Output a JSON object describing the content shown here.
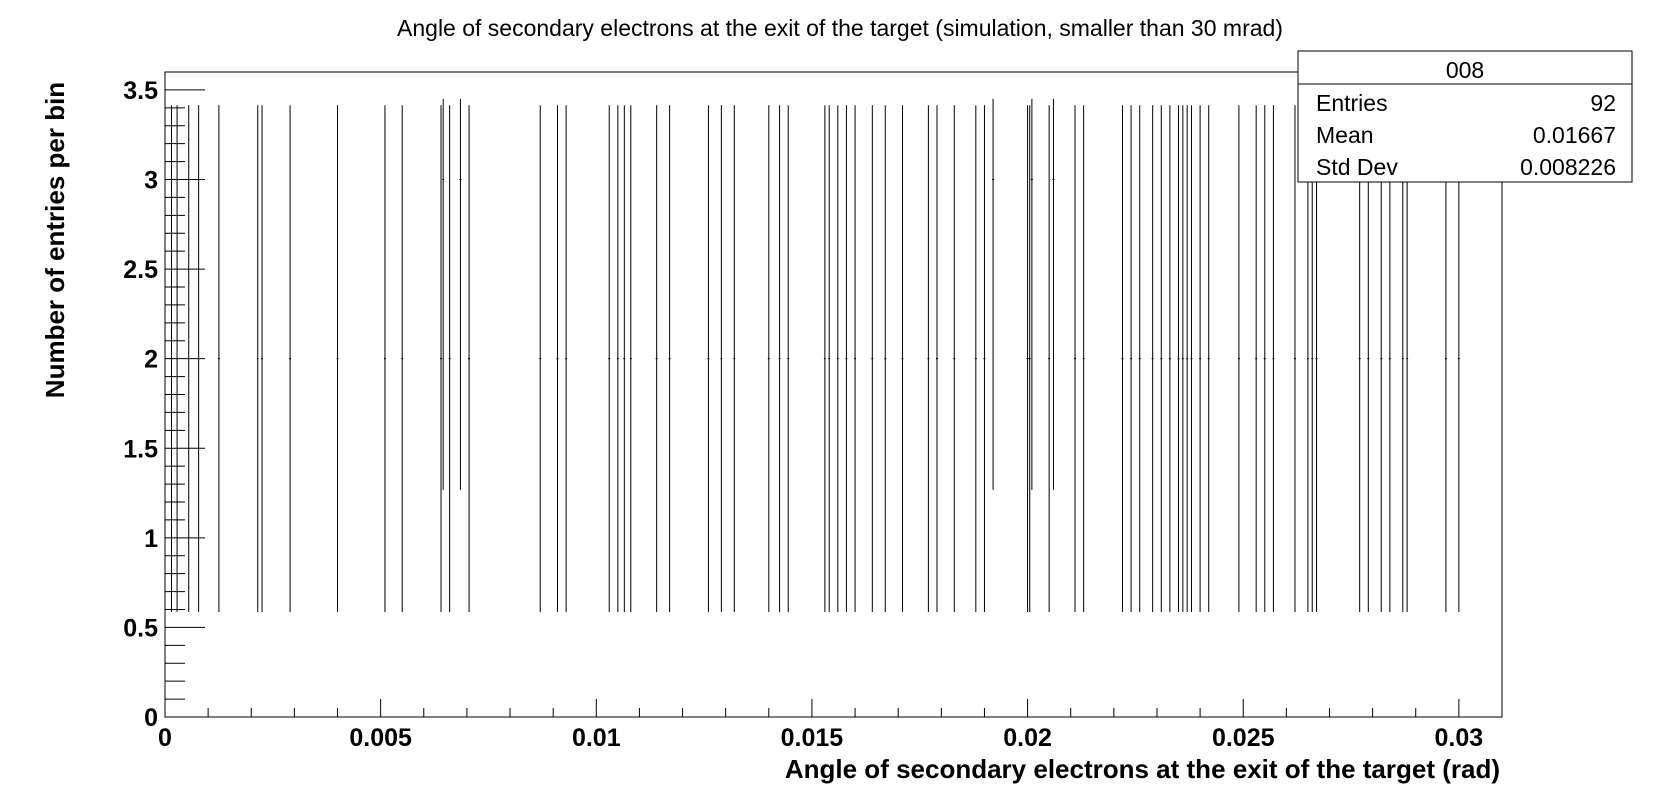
{
  "chart_data": {
    "type": "bar",
    "title": "Angle of secondary electrons at the exit of the target (simulation, smaller than 30 mrad)",
    "xlabel": "Angle of secondary electrons at the exit of the target (rad)",
    "ylabel": "Number of entries per bin",
    "xlim": [
      0,
      0.031
    ],
    "ylim": [
      0,
      3.6
    ],
    "x_ticks": [
      {
        "value": 0,
        "label": "0"
      },
      {
        "value": 0.005,
        "label": "0.005"
      },
      {
        "value": 0.01,
        "label": "0.01"
      },
      {
        "value": 0.015,
        "label": "0.015"
      },
      {
        "value": 0.02,
        "label": "0.02"
      },
      {
        "value": 0.025,
        "label": "0.025"
      },
      {
        "value": 0.03,
        "label": "0.03"
      }
    ],
    "y_ticks": [
      {
        "value": 0,
        "label": "0"
      },
      {
        "value": 0.5,
        "label": "0.5"
      },
      {
        "value": 1,
        "label": "1"
      },
      {
        "value": 1.5,
        "label": "1.5"
      },
      {
        "value": 2,
        "label": "2"
      },
      {
        "value": 2.5,
        "label": "2.5"
      },
      {
        "value": 3,
        "label": "3"
      },
      {
        "value": 3.5,
        "label": "3.5"
      }
    ],
    "grid": false,
    "error_bars": "poisson",
    "series": [
      {
        "values": [
          {
            "x": 0.00015,
            "y": 2
          },
          {
            "x": 0.00028,
            "y": 2
          },
          {
            "x": 0.00055,
            "y": 2
          },
          {
            "x": 0.00078,
            "y": 2
          },
          {
            "x": 0.00125,
            "y": 2
          },
          {
            "x": 0.00215,
            "y": 2
          },
          {
            "x": 0.00225,
            "y": 2
          },
          {
            "x": 0.0029,
            "y": 2
          },
          {
            "x": 0.004,
            "y": 2
          },
          {
            "x": 0.0051,
            "y": 2
          },
          {
            "x": 0.0055,
            "y": 2
          },
          {
            "x": 0.0064,
            "y": 2
          },
          {
            "x": 0.00645,
            "y": 3
          },
          {
            "x": 0.0066,
            "y": 2
          },
          {
            "x": 0.00685,
            "y": 3
          },
          {
            "x": 0.00705,
            "y": 2
          },
          {
            "x": 0.0087,
            "y": 2
          },
          {
            "x": 0.0091,
            "y": 2
          },
          {
            "x": 0.0093,
            "y": 2
          },
          {
            "x": 0.0103,
            "y": 2
          },
          {
            "x": 0.0105,
            "y": 2
          },
          {
            "x": 0.01065,
            "y": 2
          },
          {
            "x": 0.0108,
            "y": 2
          },
          {
            "x": 0.0114,
            "y": 2
          },
          {
            "x": 0.0117,
            "y": 2
          },
          {
            "x": 0.0126,
            "y": 2
          },
          {
            "x": 0.0129,
            "y": 2
          },
          {
            "x": 0.0132,
            "y": 2
          },
          {
            "x": 0.014,
            "y": 2
          },
          {
            "x": 0.01425,
            "y": 2
          },
          {
            "x": 0.01445,
            "y": 2
          },
          {
            "x": 0.0153,
            "y": 2
          },
          {
            "x": 0.0154,
            "y": 2
          },
          {
            "x": 0.0156,
            "y": 2
          },
          {
            "x": 0.0158,
            "y": 2
          },
          {
            "x": 0.016,
            "y": 2
          },
          {
            "x": 0.0164,
            "y": 2
          },
          {
            "x": 0.0167,
            "y": 2
          },
          {
            "x": 0.0171,
            "y": 2
          },
          {
            "x": 0.0177,
            "y": 2
          },
          {
            "x": 0.0179,
            "y": 2
          },
          {
            "x": 0.0183,
            "y": 2
          },
          {
            "x": 0.0188,
            "y": 2
          },
          {
            "x": 0.019,
            "y": 2
          },
          {
            "x": 0.0192,
            "y": 3
          },
          {
            "x": 0.02,
            "y": 2
          },
          {
            "x": 0.02005,
            "y": 2
          },
          {
            "x": 0.0201,
            "y": 3
          },
          {
            "x": 0.0205,
            "y": 2
          },
          {
            "x": 0.0206,
            "y": 3
          },
          {
            "x": 0.0211,
            "y": 2
          },
          {
            "x": 0.0213,
            "y": 2
          },
          {
            "x": 0.0222,
            "y": 2
          },
          {
            "x": 0.0224,
            "y": 2
          },
          {
            "x": 0.0226,
            "y": 2
          },
          {
            "x": 0.0229,
            "y": 2
          },
          {
            "x": 0.0231,
            "y": 2
          },
          {
            "x": 0.0233,
            "y": 2
          },
          {
            "x": 0.0235,
            "y": 2
          },
          {
            "x": 0.0236,
            "y": 2
          },
          {
            "x": 0.0237,
            "y": 2
          },
          {
            "x": 0.0238,
            "y": 2
          },
          {
            "x": 0.024,
            "y": 2
          },
          {
            "x": 0.0242,
            "y": 2
          },
          {
            "x": 0.0249,
            "y": 2
          },
          {
            "x": 0.0253,
            "y": 2
          },
          {
            "x": 0.0255,
            "y": 2
          },
          {
            "x": 0.0257,
            "y": 2
          },
          {
            "x": 0.0262,
            "y": 2
          },
          {
            "x": 0.0265,
            "y": 2
          },
          {
            "x": 0.0266,
            "y": 2
          },
          {
            "x": 0.0267,
            "y": 2
          },
          {
            "x": 0.0277,
            "y": 2
          },
          {
            "x": 0.0279,
            "y": 2
          },
          {
            "x": 0.0282,
            "y": 2
          },
          {
            "x": 0.0284,
            "y": 2
          },
          {
            "x": 0.0287,
            "y": 2
          },
          {
            "x": 0.0288,
            "y": 2
          },
          {
            "x": 0.0297,
            "y": 2
          },
          {
            "x": 0.03,
            "y": 2
          }
        ]
      }
    ],
    "stats_box": {
      "name": "008",
      "rows": [
        {
          "label": "Entries",
          "value": "92"
        },
        {
          "label": "Mean",
          "value": "0.01667"
        },
        {
          "label": "Std Dev",
          "value": "0.008226"
        }
      ]
    }
  }
}
